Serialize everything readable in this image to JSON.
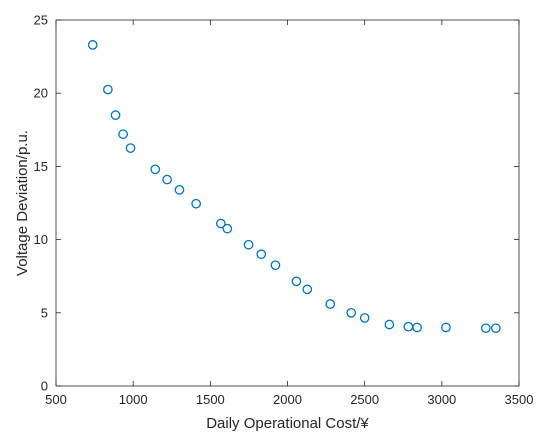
{
  "chart_data": {
    "type": "scatter",
    "title": "",
    "xlabel": "Daily Operational Cost/¥",
    "ylabel": "Voltage Deviation/p.u.",
    "xlim": [
      500,
      3500
    ],
    "ylim": [
      0,
      25
    ],
    "xticks": [
      500,
      1000,
      1500,
      2000,
      2500,
      3000,
      3500
    ],
    "yticks": [
      0,
      5,
      10,
      15,
      20,
      25
    ],
    "grid": false,
    "marker": "open-circle",
    "marker_color": "#0072BD",
    "points": [
      {
        "x": 738,
        "y": 23.3
      },
      {
        "x": 836,
        "y": 20.25
      },
      {
        "x": 886,
        "y": 18.5
      },
      {
        "x": 935,
        "y": 17.2
      },
      {
        "x": 983,
        "y": 16.25
      },
      {
        "x": 1143,
        "y": 14.8
      },
      {
        "x": 1220,
        "y": 14.1
      },
      {
        "x": 1300,
        "y": 13.4
      },
      {
        "x": 1408,
        "y": 12.45
      },
      {
        "x": 1568,
        "y": 11.1
      },
      {
        "x": 1610,
        "y": 10.75
      },
      {
        "x": 1748,
        "y": 9.65
      },
      {
        "x": 1830,
        "y": 9.0
      },
      {
        "x": 1922,
        "y": 8.25
      },
      {
        "x": 2058,
        "y": 7.15
      },
      {
        "x": 2128,
        "y": 6.6
      },
      {
        "x": 2277,
        "y": 5.6
      },
      {
        "x": 2413,
        "y": 5.0
      },
      {
        "x": 2500,
        "y": 4.65
      },
      {
        "x": 2660,
        "y": 4.2
      },
      {
        "x": 2783,
        "y": 4.05
      },
      {
        "x": 2840,
        "y": 4.0
      },
      {
        "x": 3027,
        "y": 4.0
      },
      {
        "x": 3285,
        "y": 3.95
      },
      {
        "x": 3350,
        "y": 3.95
      }
    ]
  }
}
